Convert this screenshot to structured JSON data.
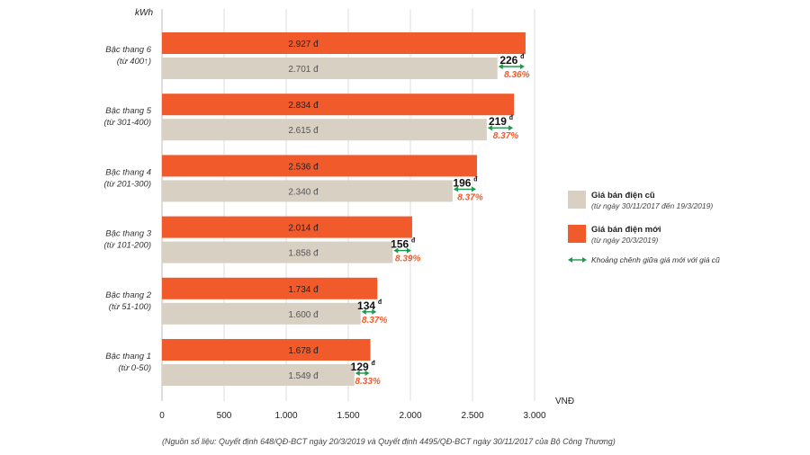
{
  "chart_data": {
    "type": "bar",
    "orientation": "horizontal",
    "ylabel": "kWh",
    "xlabel": "VNĐ",
    "xlim": [
      0,
      3000
    ],
    "xticks": [
      0,
      500,
      1000,
      1500,
      2000,
      2500,
      3000
    ],
    "xtick_labels": [
      "0",
      "500",
      "1.000",
      "1.500",
      "2.000",
      "2.500",
      "3.000"
    ],
    "categories": [
      {
        "name": "Bậc thang 6",
        "range": "(từ 400↑)"
      },
      {
        "name": "Bậc thang 5",
        "range": "(từ 301-400)"
      },
      {
        "name": "Bậc thang 4",
        "range": "(từ 201-300)"
      },
      {
        "name": "Bậc thang 3",
        "range": "(từ 101-200)"
      },
      {
        "name": "Bậc thang 2",
        "range": "(từ 51-100)"
      },
      {
        "name": "Bậc thang 1",
        "range": "(từ 0-50)"
      }
    ],
    "series": [
      {
        "name": "Giá bán điện mới",
        "color": "#f15a2b",
        "values": [
          2927,
          2834,
          2536,
          2014,
          1734,
          1678
        ],
        "labels": [
          "2.927 đ",
          "2.834 đ",
          "2.536 đ",
          "2.014 đ",
          "1.734 đ",
          "1.678 đ"
        ]
      },
      {
        "name": "Giá bán điện cũ",
        "color": "#d8d0c3",
        "values": [
          2701,
          2615,
          2340,
          1858,
          1600,
          1549
        ],
        "labels": [
          "2.701 đ",
          "2.615 đ",
          "2.340 đ",
          "1.858 đ",
          "1.600 đ",
          "1.549 đ"
        ]
      }
    ],
    "differences": [
      {
        "value": "226",
        "unit": "đ",
        "percent": "8.36%"
      },
      {
        "value": "219",
        "unit": "đ",
        "percent": "8.37%"
      },
      {
        "value": "196",
        "unit": "đ",
        "percent": "8.37%"
      },
      {
        "value": "156",
        "unit": "đ",
        "percent": "8.39%"
      },
      {
        "value": "134",
        "unit": "đ",
        "percent": "8.37%"
      },
      {
        "value": "129",
        "unit": "đ",
        "percent": "8.33%"
      }
    ],
    "legend": {
      "placement": "right",
      "items": [
        {
          "type": "swatch",
          "color": "#d8d0c3",
          "title": "Giá bán điện cũ",
          "subtitle": "(từ ngày 30/11/2017 đến 19/3/2019)"
        },
        {
          "type": "swatch",
          "color": "#f15a2b",
          "title": "Giá bán điện mới",
          "subtitle": "(từ ngày 20/3/2019)"
        },
        {
          "type": "arrow",
          "color": "#1a9a4a",
          "title": "Khoảng chênh giữa giá mới với giá cũ",
          "subtitle": ""
        }
      ]
    },
    "grid": "vertical"
  },
  "source_note": "(Nguồn số liệu: Quyết định 648/QĐ-BCT ngày 20/3/2019 và Quyết định 4495/QĐ-BCT ngày 30/11/2017 của Bộ Công Thương)"
}
